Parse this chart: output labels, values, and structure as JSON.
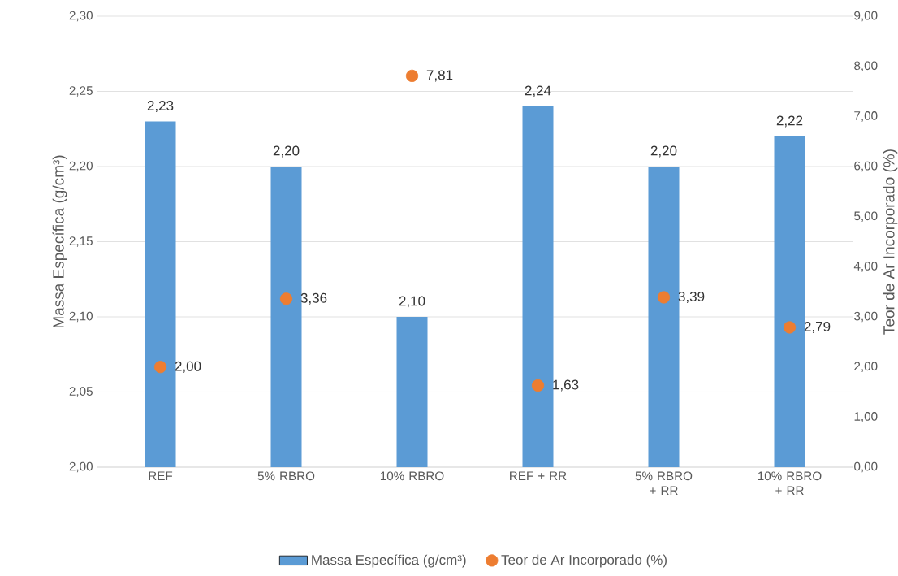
{
  "chart_data": {
    "type": "bar",
    "ylabel": "Massa Específica (g/cm³)",
    "y2label": "Teor de Ar Incorporado (%)",
    "categories": [
      "REF",
      "5% RBRO",
      "10% RBRO",
      "REF + RR",
      "5% RBRO + RR",
      "10% RBRO + RR"
    ],
    "series": [
      {
        "name": "Massa Específica (g/cm³)",
        "axis": "y",
        "color": "#5b9bd5",
        "values": [
          2.23,
          2.2,
          2.1,
          2.24,
          2.2,
          2.22
        ],
        "value_labels": [
          "2,23",
          "2,20",
          "2,10",
          "2,24",
          "2,20",
          "2,22"
        ]
      },
      {
        "name": "Teor de Ar Incorporado (%)",
        "type": "scatter",
        "axis": "y2",
        "marker": "circle",
        "color": "#ed7d31",
        "values": [
          2.0,
          3.36,
          7.81,
          1.63,
          3.39,
          2.79
        ],
        "value_labels": [
          "2,00",
          "3,36",
          "7,81",
          "1,63",
          "3,39",
          "2,79"
        ]
      }
    ],
    "ylim": [
      2.0,
      2.3
    ],
    "yticks": [
      {
        "value": 2.0,
        "label": "2,00"
      },
      {
        "value": 2.05,
        "label": "2,05"
      },
      {
        "value": 2.1,
        "label": "2,10"
      },
      {
        "value": 2.15,
        "label": "2,15"
      },
      {
        "value": 2.2,
        "label": "2,20"
      },
      {
        "value": 2.25,
        "label": "2,25"
      },
      {
        "value": 2.3,
        "label": "2,30"
      }
    ],
    "y2lim": [
      0,
      9
    ],
    "y2ticks": [
      {
        "value": 0,
        "label": "0,00"
      },
      {
        "value": 1,
        "label": "1,00"
      },
      {
        "value": 2,
        "label": "2,00"
      },
      {
        "value": 3,
        "label": "3,00"
      },
      {
        "value": 4,
        "label": "4,00"
      },
      {
        "value": 5,
        "label": "5,00"
      },
      {
        "value": 6,
        "label": "6,00"
      },
      {
        "value": 7,
        "label": "7,00"
      },
      {
        "value": 8,
        "label": "8,00"
      },
      {
        "value": 9,
        "label": "9,00"
      }
    ],
    "grid": "y",
    "legend": "bottom"
  }
}
